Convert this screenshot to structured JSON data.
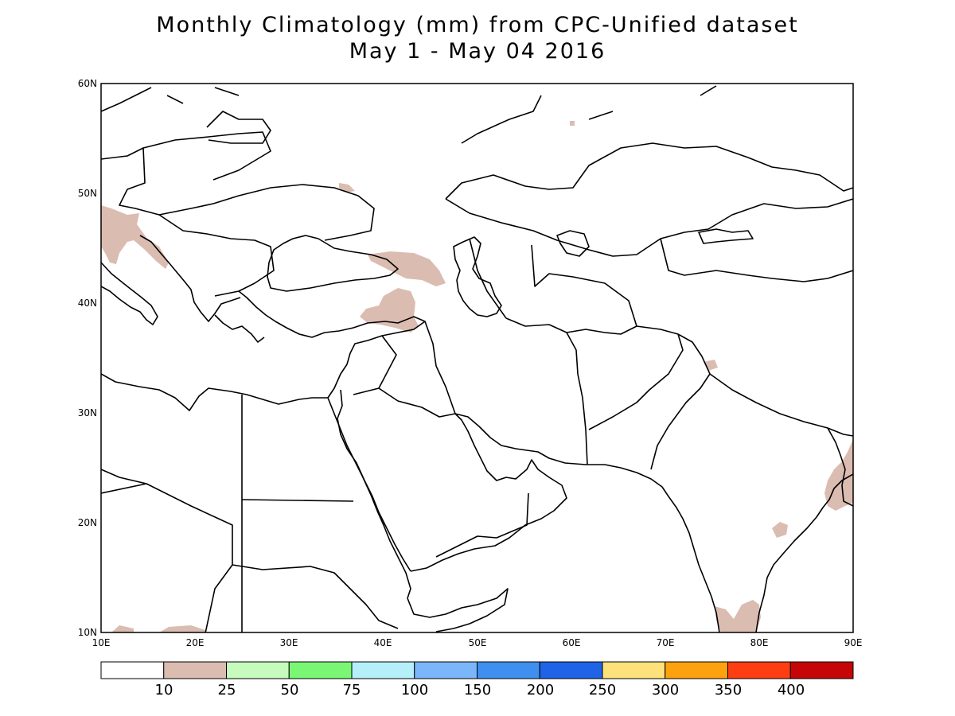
{
  "title": {
    "line1": "Monthly Climatology (mm) from CPC-Unified dataset",
    "line2": "May 1 - May 04 2016"
  },
  "map": {
    "lon_range": [
      10,
      90
    ],
    "lat_range": [
      10,
      60
    ],
    "lon_ticks": [
      "10E",
      "20E",
      "30E",
      "40E",
      "50E",
      "60E",
      "70E",
      "80E",
      "90E"
    ],
    "lat_ticks": [
      "10N",
      "20N",
      "30N",
      "40N",
      "50N",
      "60N"
    ],
    "shaded_regions": [
      {
        "name": "northern-italy-adriatic",
        "level": "10-25"
      },
      {
        "name": "caucasus",
        "level": "10-25"
      },
      {
        "name": "eastern-turkey",
        "level": "10-25"
      },
      {
        "name": "bangladesh-myanmar-coast",
        "level": "10-25"
      },
      {
        "name": "southern-india",
        "level": "10-25"
      },
      {
        "name": "eastern-india",
        "level": "10-25"
      },
      {
        "name": "ukraine-small",
        "level": "10-25"
      },
      {
        "name": "kashmir",
        "level": "10-25"
      }
    ]
  },
  "colorbar": {
    "colors": [
      "#ffffff",
      "#dbbcb1",
      "#c6fbbd",
      "#7af675",
      "#b5f0fa",
      "#7bb6fa",
      "#3e8ff0",
      "#2063e6",
      "#fde27b",
      "#fda20e",
      "#fd3d12",
      "#c60606"
    ],
    "labels": [
      "10",
      "25",
      "50",
      "75",
      "100",
      "150",
      "200",
      "250",
      "300",
      "350",
      "400"
    ]
  }
}
